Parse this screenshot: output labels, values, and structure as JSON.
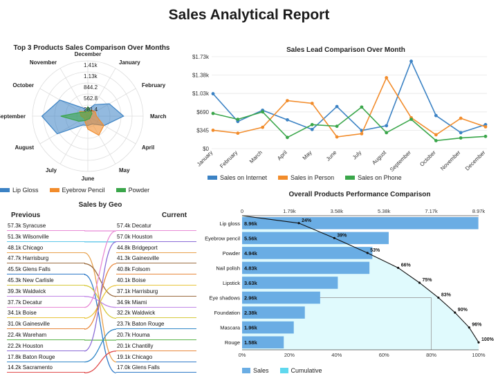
{
  "report_title": "Sales Analytical Report",
  "colors": {
    "blue": "#3b82c4",
    "orange": "#f28c2b",
    "green": "#3aa64a",
    "bar": "#6aade4",
    "cum_fill": "#e0fafd"
  },
  "chart_data": [
    {
      "type": "radar",
      "title": "Top 3 Products Sales Comparison Over Months",
      "categories": [
        "December",
        "January",
        "February",
        "March",
        "April",
        "May",
        "June",
        "July",
        "August",
        "September",
        "October",
        "November"
      ],
      "ticks": [
        "1.41k",
        "1.13k",
        "844.2",
        "562.8",
        "281.4"
      ],
      "max": 1407,
      "legend": [
        {
          "name": "Lip Gloss",
          "color": "#3b82c4"
        },
        {
          "name": "Eyebrow Pencil",
          "color": "#f28c2b"
        },
        {
          "name": "Powder",
          "color": "#3aa64a"
        }
      ],
      "series": [
        {
          "name": "Lip Gloss",
          "values": [
            160,
            340,
            630,
            910,
            480,
            230,
            240,
            260,
            900,
            1170,
            820,
            240
          ]
        },
        {
          "name": "Eyebrow Pencil",
          "values": [
            90,
            180,
            220,
            220,
            470,
            560,
            330,
            150,
            100,
            170,
            240,
            130
          ]
        },
        {
          "name": "Powder",
          "values": [
            240,
            150,
            120,
            70,
            70,
            80,
            80,
            130,
            260,
            690,
            200,
            120
          ]
        }
      ]
    },
    {
      "type": "line",
      "title": "Sales Lead Comparison Over Month",
      "x": [
        "January",
        "February",
        "March",
        "April",
        "May",
        "June",
        "July",
        "August",
        "September",
        "October",
        "November",
        "December"
      ],
      "yticks": [
        "$0",
        "$345",
        "$690",
        "$1.03k",
        "$1.38k",
        "$1.73k"
      ],
      "ylim": [
        0,
        1725
      ],
      "series": [
        {
          "name": "Sales on Internet",
          "color": "#3b82c4",
          "values": [
            1030,
            510,
            720,
            540,
            360,
            790,
            340,
            430,
            1640,
            620,
            300,
            450
          ]
        },
        {
          "name": "Sales in Person",
          "color": "#f28c2b",
          "values": [
            345,
            290,
            400,
            900,
            850,
            220,
            280,
            1330,
            580,
            260,
            570,
            410
          ]
        },
        {
          "name": "Sales on Phone",
          "color": "#3aa64a",
          "values": [
            660,
            550,
            690,
            210,
            450,
            420,
            780,
            300,
            550,
            150,
            200,
            230
          ]
        }
      ]
    },
    {
      "type": "bump",
      "title": "Sales by Geo",
      "left_header": "Previous",
      "right_header": "Current",
      "previous": [
        {
          "value": "57.3k",
          "city": "Syracuse",
          "color": "#e889d6"
        },
        {
          "value": "51.3k",
          "city": "Wilsonville",
          "color": "#5cc6e8"
        },
        {
          "value": "48.1k",
          "city": "Chicago",
          "color": "#e8a04a"
        },
        {
          "value": "47.7k",
          "city": "Harrisburg",
          "color": "#9a6a3e"
        },
        {
          "value": "45.5k",
          "city": "Glens Falls",
          "color": "#2d79c7"
        },
        {
          "value": "45.3k",
          "city": "New Carlisle",
          "color": "#d6c93a"
        },
        {
          "value": "39.3k",
          "city": "Waldwick",
          "color": "#c086e6"
        },
        {
          "value": "37.7k",
          "city": "Decatur",
          "color": "#e888d4"
        },
        {
          "value": "34.1k",
          "city": "Boise",
          "color": "#e8c43a"
        },
        {
          "value": "31.0k",
          "city": "Gainesville",
          "color": "#e8873a"
        },
        {
          "value": "22.4k",
          "city": "Wareham",
          "color": "#5bb44a"
        },
        {
          "value": "22.2k",
          "city": "Houston",
          "color": "#8a6ad6"
        },
        {
          "value": "17.8k",
          "city": "Baton Rouge",
          "color": "#2e86c7"
        },
        {
          "value": "14.2k",
          "city": "Sacramento",
          "color": "#e04b4b"
        }
      ],
      "current": [
        {
          "value": "57.4k",
          "city": "Decatur",
          "color": "#e889d6"
        },
        {
          "value": "57.0k",
          "city": "Houston",
          "color": "#8a6ad6"
        },
        {
          "value": "44.8k",
          "city": "Bridgeport",
          "color": "#e8a04a"
        },
        {
          "value": "41.3k",
          "city": "Gainesville",
          "color": "#9a6a3e"
        },
        {
          "value": "40.8k",
          "city": "Folsom",
          "color": "#e8873a"
        },
        {
          "value": "40.1k",
          "city": "Boise",
          "color": "#e8c43a"
        },
        {
          "value": "37.1k",
          "city": "Harrisburg",
          "color": "#9a6a3e"
        },
        {
          "value": "34.9k",
          "city": "Miami",
          "color": "#c086e6"
        },
        {
          "value": "32.2k",
          "city": "Waldwick",
          "color": "#d6c93a"
        },
        {
          "value": "23.7k",
          "city": "Baton Rouge",
          "color": "#2e86c7"
        },
        {
          "value": "20.7k",
          "city": "Houma",
          "color": "#5bb44a"
        },
        {
          "value": "20.1k",
          "city": "Chantilly",
          "color": "#e8873a"
        },
        {
          "value": "19.1k",
          "city": "Chicago",
          "color": "#2d79c7"
        },
        {
          "value": "17.0k",
          "city": "Glens Falls",
          "color": "#2d79c7"
        }
      ],
      "links": [
        [
          0,
          0
        ],
        [
          1,
          1
        ],
        [
          2,
          12
        ],
        [
          3,
          6
        ],
        [
          4,
          13
        ],
        [
          5,
          8
        ],
        [
          6,
          7
        ],
        [
          7,
          0
        ],
        [
          8,
          5
        ],
        [
          9,
          3
        ],
        [
          10,
          10
        ],
        [
          11,
          1
        ],
        [
          12,
          9
        ],
        [
          13,
          11
        ]
      ]
    },
    {
      "type": "pareto",
      "title": "Overall Products Performance Comparison",
      "categories": [
        "Lip gloss",
        "Eyebrow pencil",
        "Powder",
        "Nail polish",
        "Lipstick",
        "Eye shadows",
        "Foundation",
        "Mascara",
        "Rouge"
      ],
      "values": [
        8960,
        5560,
        4940,
        4830,
        3630,
        2960,
        2380,
        1960,
        1580
      ],
      "value_labels": [
        "8.96k",
        "5.56k",
        "4.94k",
        "4.83k",
        "3.63k",
        "2.96k",
        "2.38k",
        "1.96k",
        "1.58k"
      ],
      "cumulative": [
        24,
        39,
        53,
        66,
        75,
        83,
        90,
        96,
        100
      ],
      "top_ticks": [
        "0",
        "1.79k",
        "3.58k",
        "5.38k",
        "7.17k",
        "8.97k"
      ],
      "bottom_ticks": [
        "0%",
        "20%",
        "40%",
        "60%",
        "80%",
        "100%"
      ],
      "xlim": [
        0,
        8970
      ],
      "legend": [
        {
          "name": "Sales",
          "color": "#6aade4"
        },
        {
          "name": "Cumulative",
          "color": "#5fd8ee"
        }
      ]
    }
  ]
}
